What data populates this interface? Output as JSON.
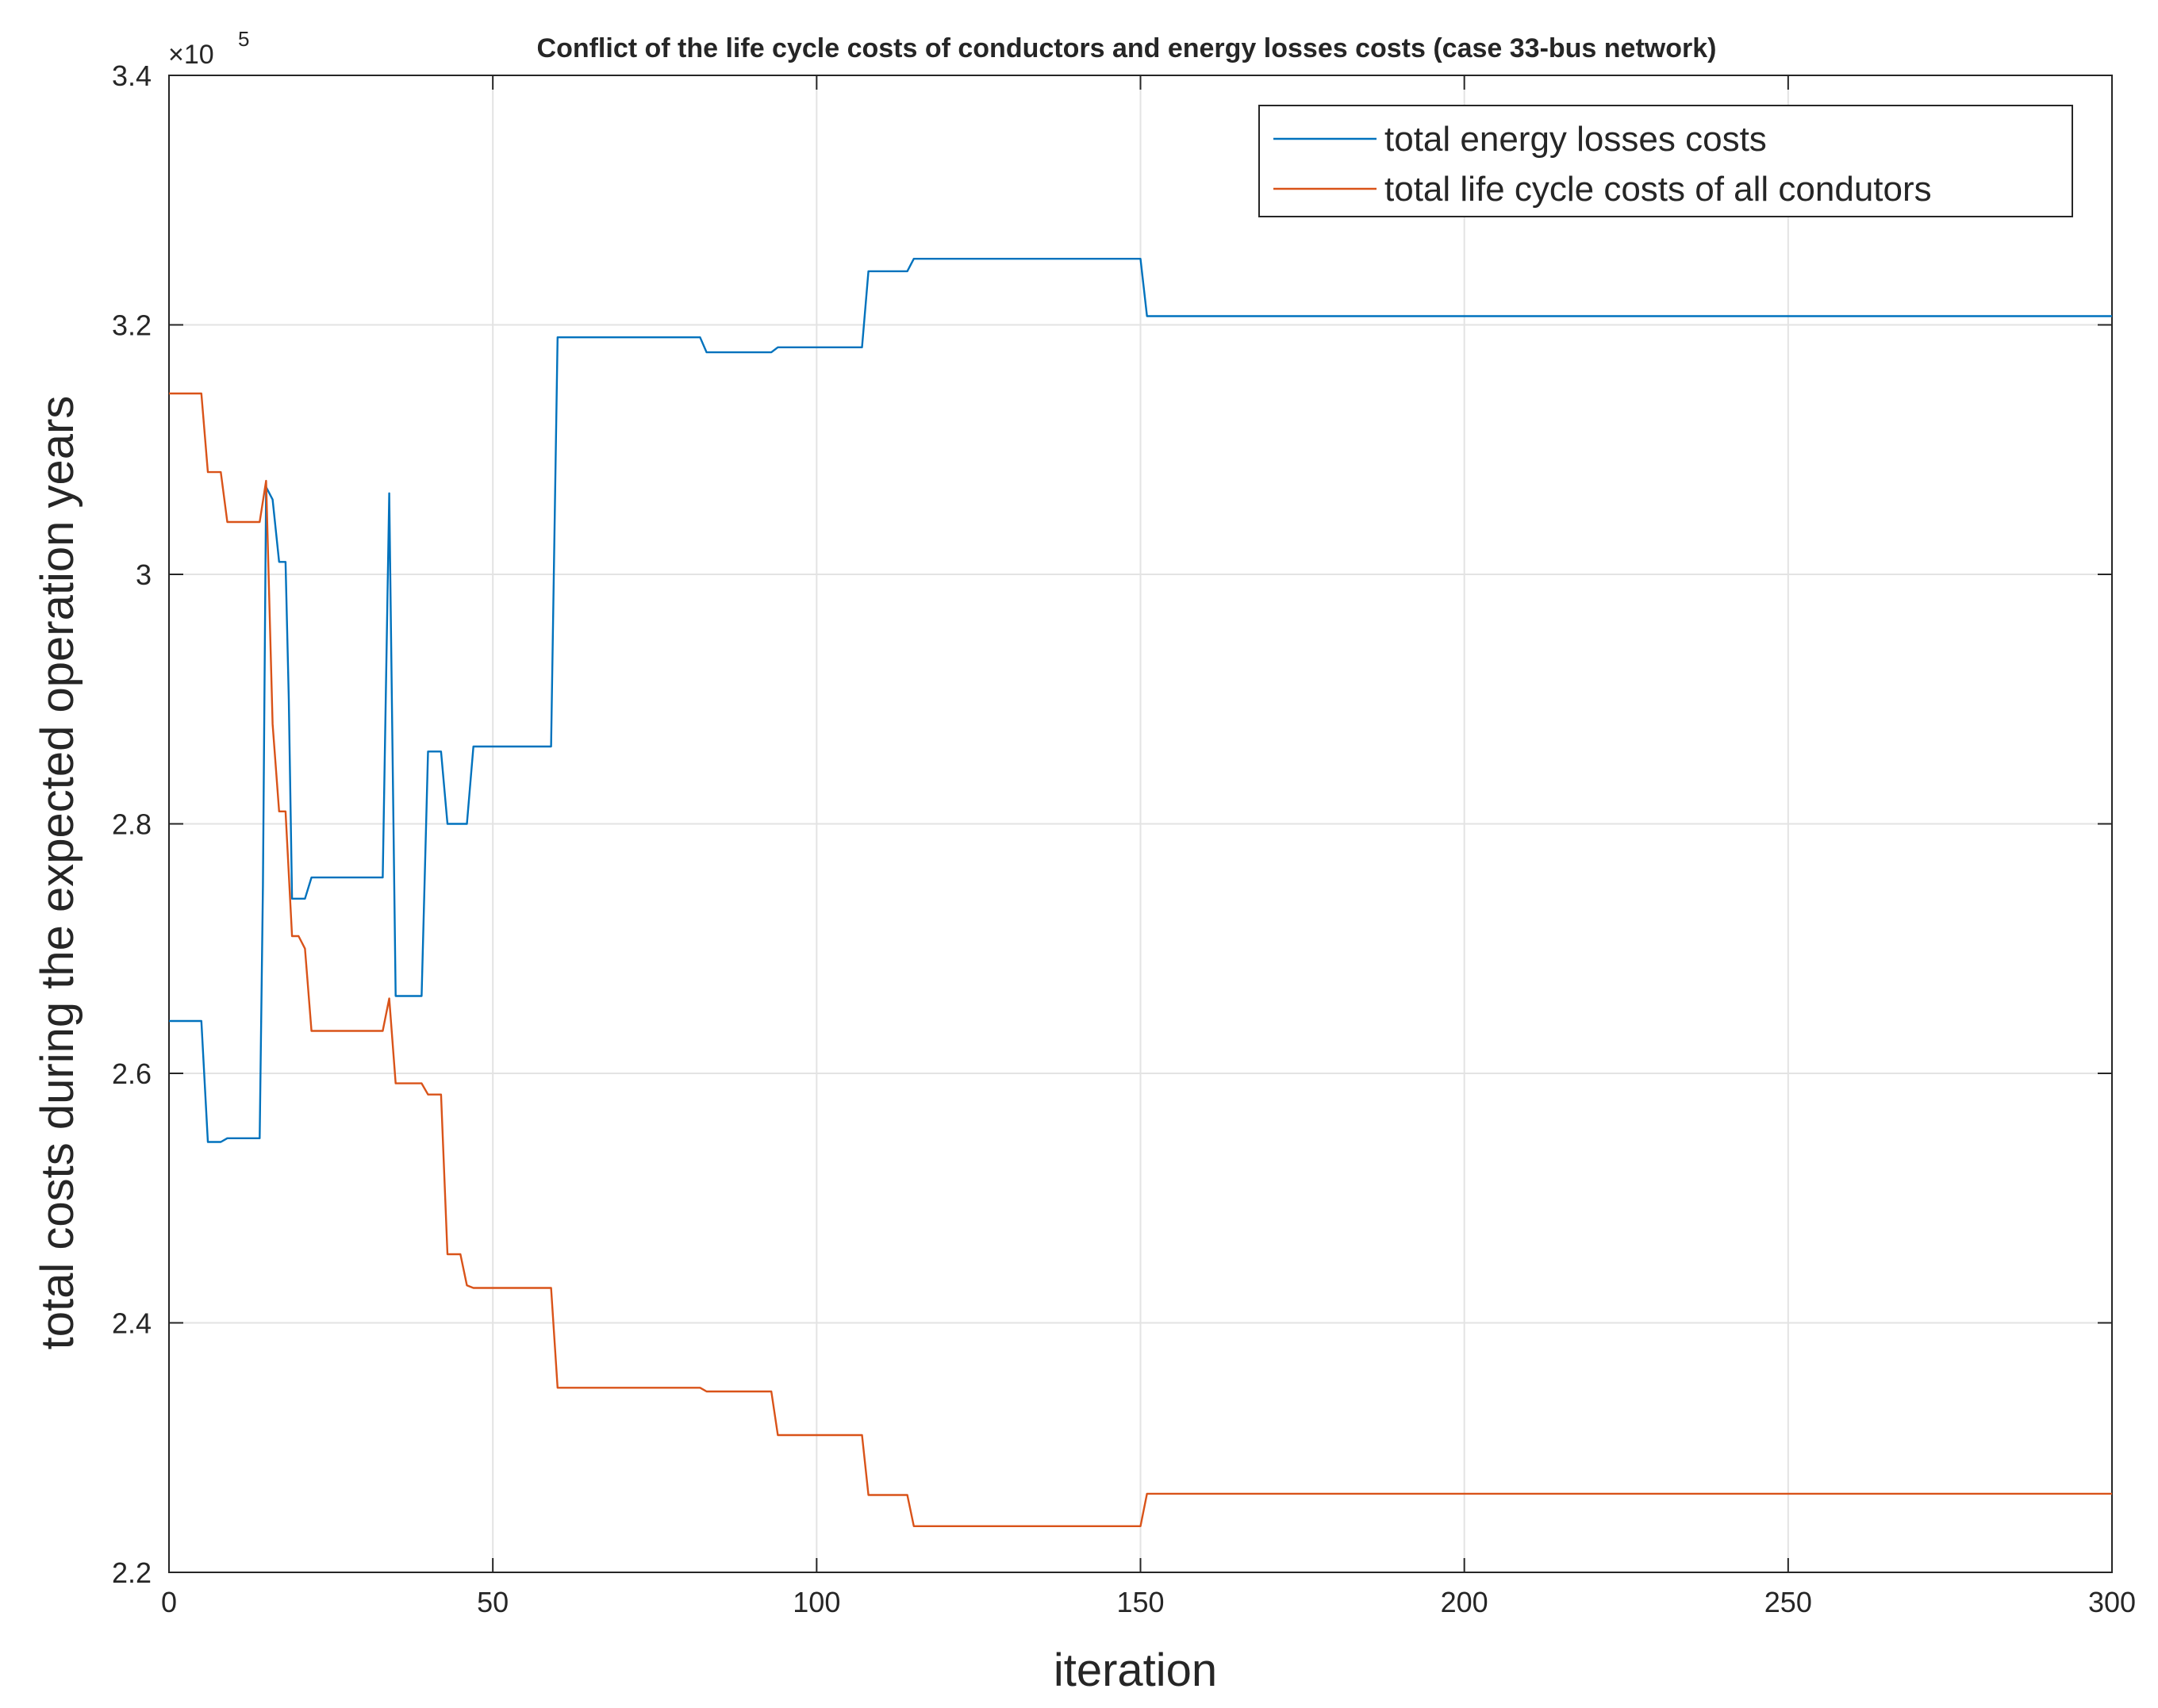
{
  "chart_data": {
    "type": "line",
    "title": "Conflict of the life cycle costs of conductors and energy losses costs (case 33-bus network)",
    "xlabel": "iteration",
    "ylabel": "total costs during the expected operation years",
    "y_exponent_label": "×10",
    "y_exponent_value": "5",
    "xlim": [
      0,
      300
    ],
    "ylim": [
      2.2,
      3.4
    ],
    "y_scale_factor": 100000,
    "xticks": [
      0,
      50,
      100,
      150,
      200,
      250,
      300
    ],
    "xtick_labels": [
      "0",
      "50",
      "100",
      "150",
      "200",
      "250",
      "300"
    ],
    "yticks": [
      2.2,
      2.4,
      2.6,
      2.8,
      3.0,
      3.2,
      3.4
    ],
    "ytick_labels": [
      "2.2",
      "2.4",
      "2.6",
      "2.8",
      "3",
      "3.2",
      "3.4"
    ],
    "grid": true,
    "legend_position": "top-right",
    "series": [
      {
        "name": "total energy losses costs",
        "color": "#0072BD",
        "x": [
          0,
          5,
          6,
          8,
          9,
          14,
          14.5,
          15,
          16,
          17,
          18,
          18.5,
          19,
          21,
          22,
          33,
          34,
          35,
          36,
          39,
          40,
          42,
          43,
          46,
          47,
          59,
          60,
          82,
          83,
          93,
          94,
          107,
          108,
          114,
          115,
          150,
          151,
          300
        ],
        "values": [
          2.642,
          2.642,
          2.545,
          2.545,
          2.548,
          2.548,
          2.75,
          3.07,
          3.06,
          3.01,
          3.01,
          2.9,
          2.74,
          2.74,
          2.757,
          2.757,
          3.065,
          2.662,
          2.662,
          2.662,
          2.858,
          2.858,
          2.8,
          2.8,
          2.862,
          2.862,
          3.19,
          3.19,
          3.178,
          3.178,
          3.182,
          3.182,
          3.243,
          3.243,
          3.253,
          3.253,
          3.207,
          3.207
        ]
      },
      {
        "name": "total life cycle costs of all condutors",
        "color": "#D95319",
        "x": [
          0,
          5,
          6,
          8,
          9,
          14,
          15,
          16,
          17,
          18,
          19,
          20,
          21,
          22,
          33,
          34,
          35,
          39,
          40,
          42,
          43,
          45,
          46,
          47,
          59,
          60,
          82,
          83,
          93,
          94,
          107,
          108,
          114,
          115,
          150,
          151,
          300
        ],
        "values": [
          3.145,
          3.145,
          3.082,
          3.082,
          3.042,
          3.042,
          3.075,
          2.88,
          2.81,
          2.81,
          2.71,
          2.71,
          2.7,
          2.634,
          2.634,
          2.66,
          2.592,
          2.592,
          2.583,
          2.583,
          2.455,
          2.455,
          2.43,
          2.428,
          2.428,
          2.348,
          2.348,
          2.345,
          2.345,
          2.31,
          2.31,
          2.262,
          2.262,
          2.237,
          2.237,
          2.263,
          2.263
        ]
      }
    ]
  }
}
